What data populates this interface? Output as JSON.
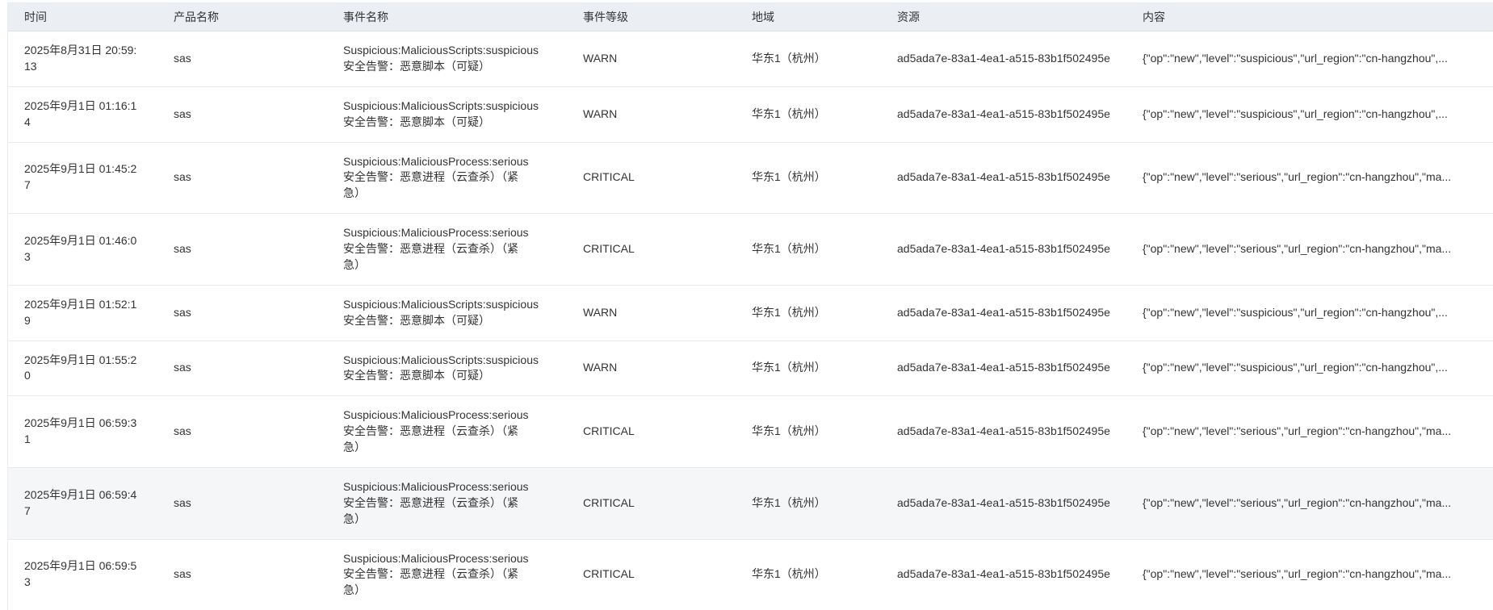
{
  "colors": {
    "header_bg": "#ebeef3",
    "header_border": "#dadde2",
    "row_border": "#e9ebee",
    "row_hover_bg": "#f5f6f8",
    "text": "#333333"
  },
  "table": {
    "columns": [
      {
        "key": "time",
        "label": "时间"
      },
      {
        "key": "product",
        "label": "产品名称"
      },
      {
        "key": "event",
        "label": "事件名称"
      },
      {
        "key": "level",
        "label": "事件等级"
      },
      {
        "key": "region",
        "label": "地域"
      },
      {
        "key": "resource",
        "label": "资源"
      },
      {
        "key": "content",
        "label": "内容"
      }
    ],
    "rows": [
      {
        "time": "2025年8月31日 20:59:13",
        "product": "sas",
        "event_id": "Suspicious:MaliciousScripts:suspicious",
        "event_desc": "安全告警：恶意脚本（可疑）",
        "level": "WARN",
        "region": "华东1（杭州）",
        "resource": "ad5ada7e-83a1-4ea1-a515-83b1f502495e",
        "content": "{\"op\":\"new\",\"level\":\"suspicious\",\"url_region\":\"cn-hangzhou\",...",
        "highlighted": false
      },
      {
        "time": "2025年9月1日 01:16:14",
        "product": "sas",
        "event_id": "Suspicious:MaliciousScripts:suspicious",
        "event_desc": "安全告警：恶意脚本（可疑）",
        "level": "WARN",
        "region": "华东1（杭州）",
        "resource": "ad5ada7e-83a1-4ea1-a515-83b1f502495e",
        "content": "{\"op\":\"new\",\"level\":\"suspicious\",\"url_region\":\"cn-hangzhou\",...",
        "highlighted": false
      },
      {
        "time": "2025年9月1日 01:45:27",
        "product": "sas",
        "event_id": "Suspicious:MaliciousProcess:serious",
        "event_desc": "安全告警：恶意进程（云查杀）（紧急）",
        "level": "CRITICAL",
        "region": "华东1（杭州）",
        "resource": "ad5ada7e-83a1-4ea1-a515-83b1f502495e",
        "content": "{\"op\":\"new\",\"level\":\"serious\",\"url_region\":\"cn-hangzhou\",\"ma...",
        "highlighted": false
      },
      {
        "time": "2025年9月1日 01:46:03",
        "product": "sas",
        "event_id": "Suspicious:MaliciousProcess:serious",
        "event_desc": "安全告警：恶意进程（云查杀）（紧急）",
        "level": "CRITICAL",
        "region": "华东1（杭州）",
        "resource": "ad5ada7e-83a1-4ea1-a515-83b1f502495e",
        "content": "{\"op\":\"new\",\"level\":\"serious\",\"url_region\":\"cn-hangzhou\",\"ma...",
        "highlighted": false
      },
      {
        "time": "2025年9月1日 01:52:19",
        "product": "sas",
        "event_id": "Suspicious:MaliciousScripts:suspicious",
        "event_desc": "安全告警：恶意脚本（可疑）",
        "level": "WARN",
        "region": "华东1（杭州）",
        "resource": "ad5ada7e-83a1-4ea1-a515-83b1f502495e",
        "content": "{\"op\":\"new\",\"level\":\"suspicious\",\"url_region\":\"cn-hangzhou\",...",
        "highlighted": false
      },
      {
        "time": "2025年9月1日 01:55:20",
        "product": "sas",
        "event_id": "Suspicious:MaliciousScripts:suspicious",
        "event_desc": "安全告警：恶意脚本（可疑）",
        "level": "WARN",
        "region": "华东1（杭州）",
        "resource": "ad5ada7e-83a1-4ea1-a515-83b1f502495e",
        "content": "{\"op\":\"new\",\"level\":\"suspicious\",\"url_region\":\"cn-hangzhou\",...",
        "highlighted": false
      },
      {
        "time": "2025年9月1日 06:59:31",
        "product": "sas",
        "event_id": "Suspicious:MaliciousProcess:serious",
        "event_desc": "安全告警：恶意进程（云查杀）（紧急）",
        "level": "CRITICAL",
        "region": "华东1（杭州）",
        "resource": "ad5ada7e-83a1-4ea1-a515-83b1f502495e",
        "content": "{\"op\":\"new\",\"level\":\"serious\",\"url_region\":\"cn-hangzhou\",\"ma...",
        "highlighted": false
      },
      {
        "time": "2025年9月1日 06:59:47",
        "product": "sas",
        "event_id": "Suspicious:MaliciousProcess:serious",
        "event_desc": "安全告警：恶意进程（云查杀）（紧急）",
        "level": "CRITICAL",
        "region": "华东1（杭州）",
        "resource": "ad5ada7e-83a1-4ea1-a515-83b1f502495e",
        "content": "{\"op\":\"new\",\"level\":\"serious\",\"url_region\":\"cn-hangzhou\",\"ma...",
        "highlighted": true
      },
      {
        "time": "2025年9月1日 06:59:53",
        "product": "sas",
        "event_id": "Suspicious:MaliciousProcess:serious",
        "event_desc": "安全告警：恶意进程（云查杀）（紧急）",
        "level": "CRITICAL",
        "region": "华东1（杭州）",
        "resource": "ad5ada7e-83a1-4ea1-a515-83b1f502495e",
        "content": "{\"op\":\"new\",\"level\":\"serious\",\"url_region\":\"cn-hangzhou\",\"ma...",
        "highlighted": false
      }
    ]
  }
}
